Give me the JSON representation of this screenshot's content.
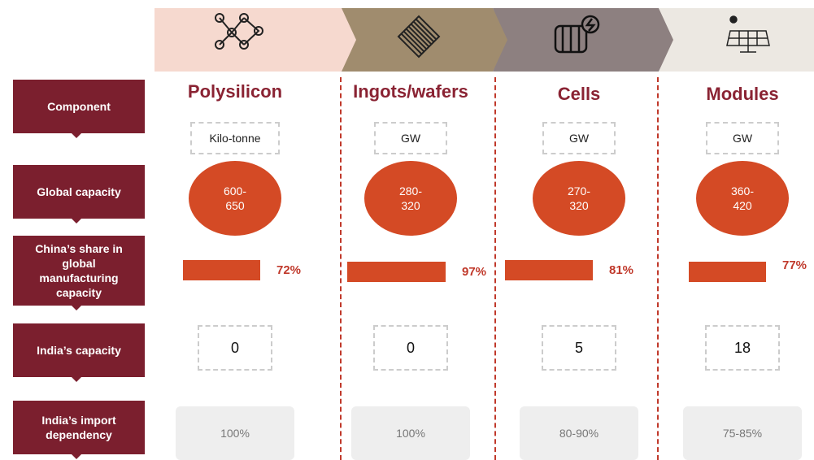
{
  "row_labels": [
    "Component",
    "Global capacity",
    "China’s share in global manufacturing capacity",
    "India’s capacity",
    "India’s import dependency"
  ],
  "columns": [
    {
      "name": "Polysilicon",
      "unit": "Kilo-tonne",
      "global_capacity": "600-650",
      "china_share": "72%",
      "india_capacity": 0,
      "import_dependency": "100%"
    },
    {
      "name": "Ingots/wafers",
      "unit": "GW",
      "global_capacity": "280-320",
      "china_share": "97%",
      "india_capacity": 0,
      "import_dependency": "100%"
    },
    {
      "name": "Cells",
      "unit": "GW",
      "global_capacity": "270-320",
      "china_share": "81%",
      "india_capacity": 5,
      "import_dependency": "80-90%"
    },
    {
      "name": "Modules",
      "unit": "GW",
      "global_capacity": "360-420",
      "china_share": "77%",
      "india_capacity": 18,
      "import_dependency": "75-85%"
    }
  ]
}
